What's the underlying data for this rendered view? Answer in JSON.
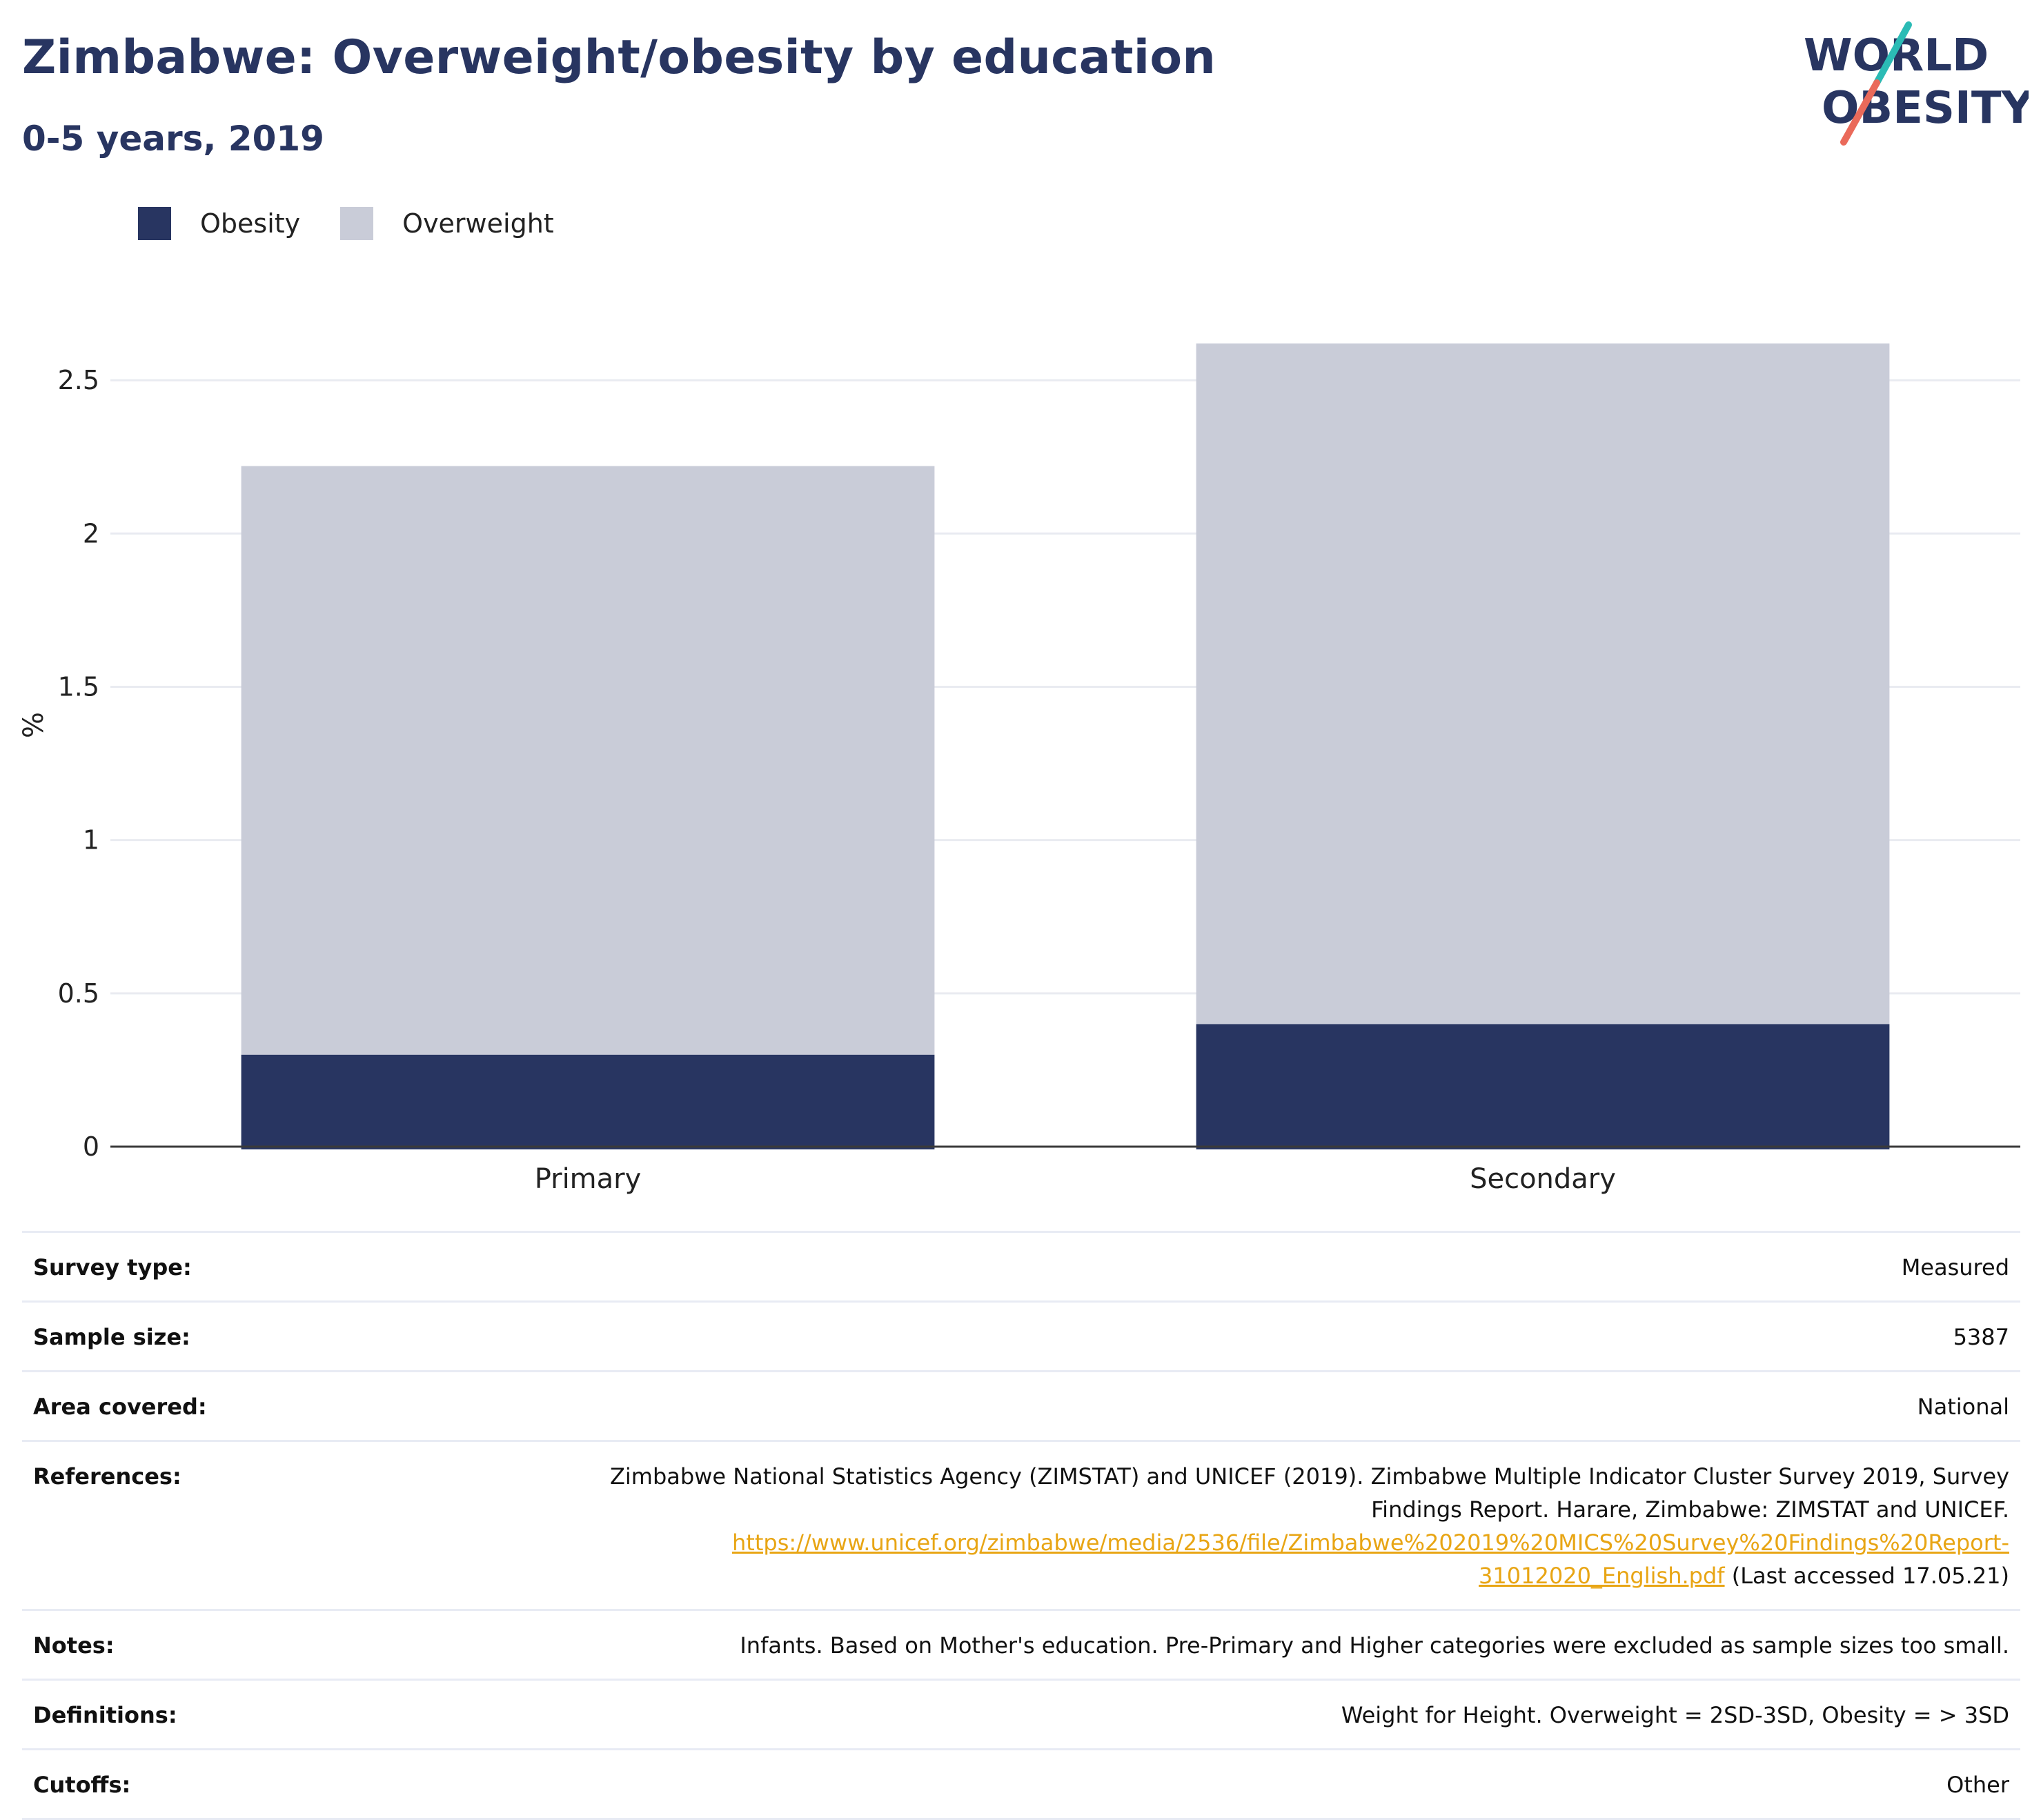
{
  "header": {
    "title": "Zimbabwe: Overweight/obesity by education",
    "subtitle": "0-5 years, 2019"
  },
  "logo": {
    "line1": "WORLD",
    "line2": "OBESITY"
  },
  "colors": {
    "obesity": "#283561",
    "overweight": "#c9ccd8",
    "accent_teal": "#2bbbb5",
    "accent_coral": "#ea6a5a",
    "link": "#e8a514"
  },
  "chart_data": {
    "type": "bar",
    "stacked": true,
    "categories": [
      "Primary",
      "Secondary"
    ],
    "series": [
      {
        "name": "Obesity",
        "values": [
          0.3,
          0.4
        ]
      },
      {
        "name": "Overweight",
        "values": [
          1.92,
          2.22
        ]
      }
    ],
    "ylabel": "%",
    "xlabel": "",
    "ylim": [
      0,
      2.75
    ],
    "yticks": [
      0,
      0.5,
      1,
      1.5,
      2,
      2.5
    ],
    "ytick_labels": [
      "0",
      "0.5",
      "1",
      "1.5",
      "2",
      "2.5"
    ],
    "grid": true,
    "legend": "top-left"
  },
  "info": {
    "survey_type": {
      "label": "Survey type:",
      "value": "Measured"
    },
    "sample_size": {
      "label": "Sample size:",
      "value": "5387"
    },
    "area_covered": {
      "label": "Area covered:",
      "value": "National"
    },
    "references": {
      "label": "References:",
      "text_line1": "Zimbabwe National Statistics Agency (ZIMSTAT) and UNICEF (2019). Zimbabwe Multiple Indicator Cluster Survey 2019, Survey",
      "text_line2": "Findings Report. Harare, Zimbabwe: ZIMSTAT and UNICEF.",
      "link_line1": "https://www.unicef.org/zimbabwe/media/2536/file/Zimbabwe%202019%20MICS%20Survey%20Findings%20Report-",
      "link_line2": "31012020_English.pdf",
      "accessed": " (Last accessed 17.05.21)"
    },
    "notes": {
      "label": "Notes:",
      "value": "Infants. Based on Mother's education. Pre-Primary and Higher categories were excluded as sample sizes too small."
    },
    "definitions": {
      "label": "Definitions:",
      "value": "Weight for Height. Overweight = 2SD-3SD, Obesity = > 3SD"
    },
    "cutoffs": {
      "label": "Cutoffs:",
      "value": "Other"
    }
  }
}
